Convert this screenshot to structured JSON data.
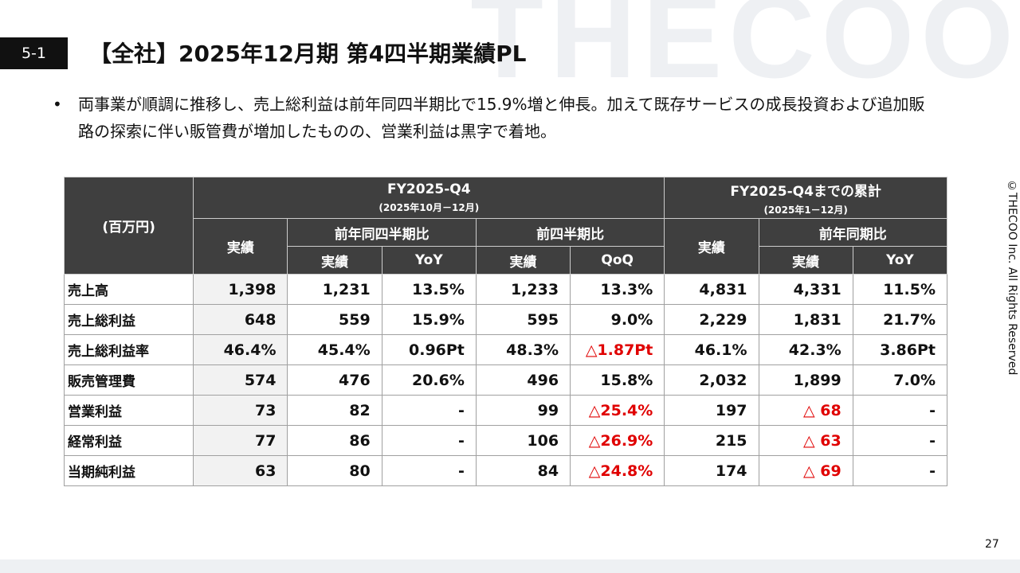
{
  "section": "5-1",
  "title": "【全社】2025年12月期 第4四半期業績PL",
  "watermark": "THECOO",
  "bullet": "両事業が順調に推移し、売上総利益は前年同四半期比で15.9%増と伸長。加えて既存サービスの成長投資および追加販路の探索に伴い販管費が増加したものの、営業利益は黒字で着地。",
  "table": {
    "unit_label": "(百万円)",
    "group_headers": [
      {
        "label": "FY2025-Q4",
        "sub": "(2025年10月－12月)"
      },
      {
        "label": "FY2025-Q4までの累計",
        "sub": "(2025年1－12月)"
      }
    ],
    "sub_headers": [
      "実績",
      "前年同四半期比",
      "前四半期比",
      "実績",
      "前年同期比"
    ],
    "column_headers": [
      "実績",
      "YoY",
      "実績",
      "QoQ",
      "実績",
      "YoY"
    ],
    "rows": [
      [
        "売上高",
        "1,398",
        "1,231",
        "13.5%",
        "1,233",
        "13.3%",
        "4,831",
        "4,331",
        "11.5%"
      ],
      [
        "売上総利益",
        "648",
        "559",
        "15.9%",
        "595",
        "9.0%",
        "2,229",
        "1,831",
        "21.7%"
      ],
      [
        "売上総利益率",
        "46.4%",
        "45.4%",
        "0.96Pt",
        "48.3%",
        "△1.87Pt",
        "46.1%",
        "42.3%",
        "3.86Pt"
      ],
      [
        "販売管理費",
        "574",
        "476",
        "20.6%",
        "496",
        "15.8%",
        "2,032",
        "1,899",
        "7.0%"
      ],
      [
        "営業利益",
        "73",
        "82",
        "-",
        "99",
        "△25.4%",
        "197",
        "△ 68",
        "-"
      ],
      [
        "経常利益",
        "77",
        "86",
        "-",
        "106",
        "△26.9%",
        "215",
        "△ 63",
        "-"
      ],
      [
        "当期純利益",
        "63",
        "80",
        "-",
        "84",
        "△24.8%",
        "174",
        "△ 69",
        "-"
      ]
    ]
  },
  "copyright": "©THECOO Inc. All Rights Reserved",
  "page_number": "27"
}
